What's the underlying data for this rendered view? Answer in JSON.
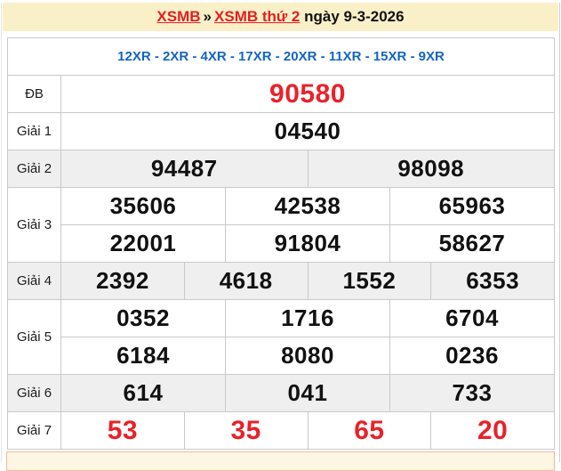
{
  "header": {
    "link1": "XSMB",
    "separator": "»",
    "link2": "XSMB thứ 2",
    "suffix": "ngày 9-3-2026"
  },
  "subheader": {
    "text": "12XR - 2XR - 4XR - 17XR - 20XR - 11XR - 15XR - 9XR"
  },
  "results": {
    "rows": [
      {
        "label": "ĐB",
        "highlight": "red",
        "shaded": false,
        "groups": [
          [
            "90580"
          ]
        ]
      },
      {
        "label": "Giải 1",
        "highlight": "black",
        "shaded": false,
        "groups": [
          [
            "04540"
          ]
        ]
      },
      {
        "label": "Giải 2",
        "highlight": "black",
        "shaded": true,
        "groups": [
          [
            "94487",
            "98098"
          ]
        ]
      },
      {
        "label": "Giải 3",
        "highlight": "black",
        "shaded": false,
        "groups": [
          [
            "35606",
            "42538",
            "65963"
          ],
          [
            "22001",
            "91804",
            "58627"
          ]
        ]
      },
      {
        "label": "Giải 4",
        "highlight": "black",
        "shaded": true,
        "groups": [
          [
            "2392",
            "4618",
            "1552",
            "6353"
          ]
        ]
      },
      {
        "label": "Giải 5",
        "highlight": "black",
        "shaded": false,
        "groups": [
          [
            "0352",
            "1716",
            "6704"
          ],
          [
            "6184",
            "8080",
            "0236"
          ]
        ]
      },
      {
        "label": "Giải 6",
        "highlight": "black",
        "shaded": true,
        "groups": [
          [
            "614",
            "041",
            "733"
          ]
        ]
      },
      {
        "label": "Giải 7",
        "highlight": "red",
        "shaded": false,
        "groups": [
          [
            "53",
            "35",
            "65",
            "20"
          ]
        ]
      }
    ]
  },
  "colors": {
    "header_bg": "#faf0c8",
    "link_red": "#e31e24",
    "number_red": "#e8222a",
    "number_black": "#111111",
    "subheader_blue": "#1565c0",
    "shaded_row": "#efefef",
    "table_border": "#c9c9c9",
    "notice_border": "#f2b9a5",
    "notice_bg": "#fdf6e2"
  }
}
